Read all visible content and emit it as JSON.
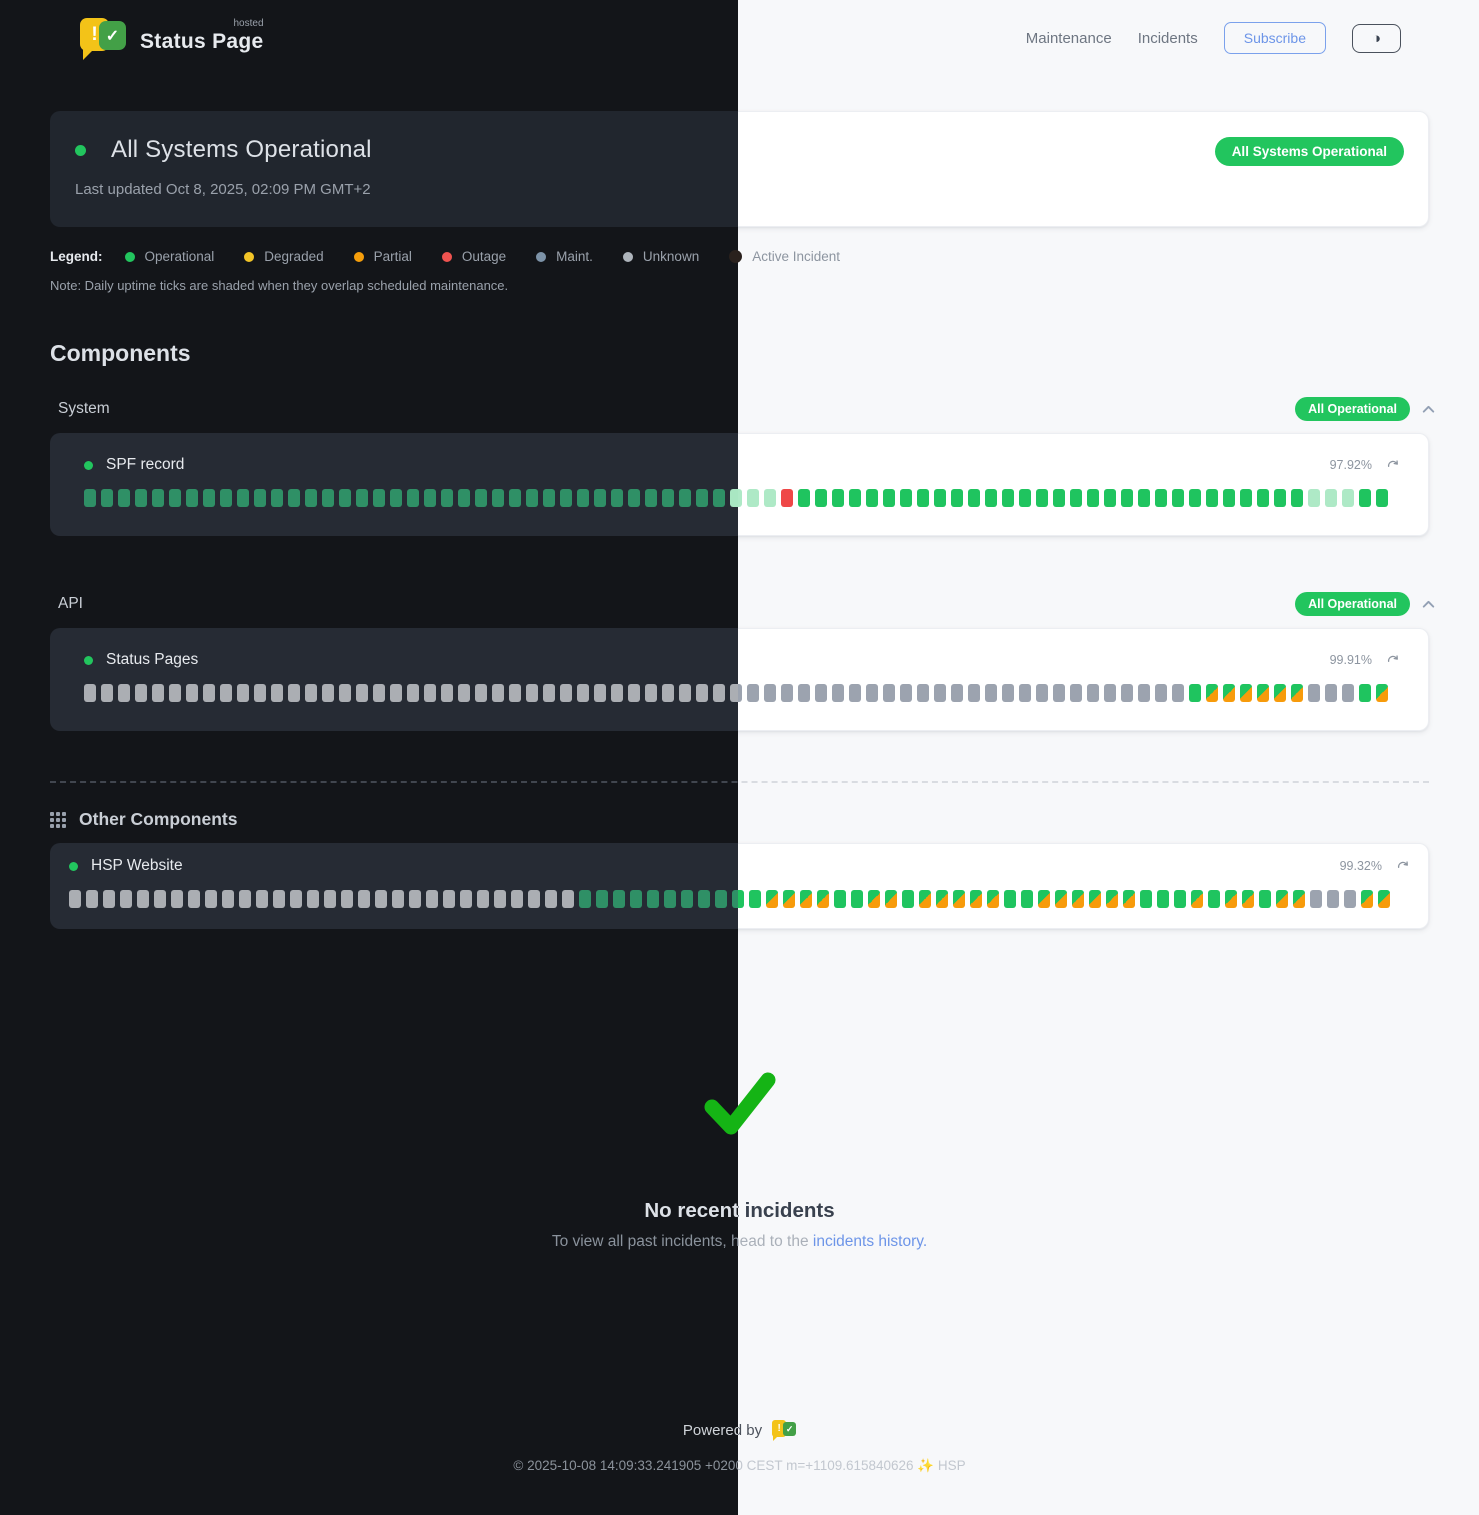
{
  "colors": {
    "accent_green": "#22c55e",
    "outage_red": "#ef4747",
    "maintenance_orange": "#f79b0b",
    "link_blue": "#6d95e8",
    "check_green": "#15b415"
  },
  "header": {
    "brand": {
      "name": "Status Page",
      "hosted": "hosted",
      "excl_glyph": "!",
      "check_glyph": "✓"
    },
    "nav": [
      {
        "label": "Maintenance"
      },
      {
        "label": "Incidents"
      }
    ],
    "subscribe_label": "Subscribe",
    "theme_icon_glyph": "◑"
  },
  "hero": {
    "title": "All Systems Operational",
    "last_updated": "Last updated Oct 8, 2025, 02:09 PM GMT+2",
    "badge": "All Systems Operational"
  },
  "legend": {
    "label": "Legend:",
    "items": [
      {
        "label": "Operational",
        "color": "#22c55e"
      },
      {
        "label": "Degraded",
        "color": "#f2c427"
      },
      {
        "label": "Partial",
        "color": "#f59e0b"
      },
      {
        "label": "Outage",
        "color": "#ef5350"
      },
      {
        "label": "Maint.",
        "color": "#7d93a8"
      },
      {
        "label": "Unknown",
        "color": "#aeb4bb"
      },
      {
        "label": "Active Incident",
        "color": "#2a211d"
      }
    ],
    "note": "Note: Daily uptime ticks are shaded when they overlap scheduled maintenance."
  },
  "components": {
    "heading": "Components",
    "tick_states": {
      "O": "operational",
      "P": "operational-light",
      "R": "outage",
      "U": "unknown",
      "M": "operational-maintenance-overlap"
    },
    "groups": [
      {
        "name": "System",
        "badge": "All Operational",
        "rows": [
          {
            "name": "SPF record",
            "uptime": "97.92%",
            "ticks": "OOOOOOOOOOOOOOOOOOOOOOOOOOOOOOOOOOOOOOPPPROOOOOOOOOOOOOOOOOOOOOOOOOOOOOOPPPOO"
          }
        ]
      },
      {
        "name": "API",
        "badge": "All Operational",
        "rows": [
          {
            "name": "Status Pages",
            "uptime": "99.91%",
            "ticks": "UUUUUUUUUUUUUUUUUUUUUUUUUUUUUUUUUUUUUUUUUUUUUUUUUUUUUUUUUUUUUUUUUOMMMMMMUUUOM"
          }
        ]
      }
    ],
    "other": {
      "heading": "Other Components",
      "rows": [
        {
          "name": "HSP Website",
          "uptime": "99.32%",
          "ticks": "UUUUUUUUUUUUUUUUUUUUUUUUUUUUUUOOOOOOOOOOOMMMMOOMMOMMMMMOOMMMMMMOOOMOMMOMMUUUMM"
        }
      ]
    }
  },
  "incidents": {
    "empty_title": "No recent incidents",
    "empty_prefix": "To view all past incidents, head to the ",
    "link_label": "incidents history."
  },
  "footer": {
    "powered_by": "Powered by",
    "copyright": "© 2025-10-08 14:09:33.241905 +0200 CEST m=+1109.615840626 ✨ HSP"
  }
}
